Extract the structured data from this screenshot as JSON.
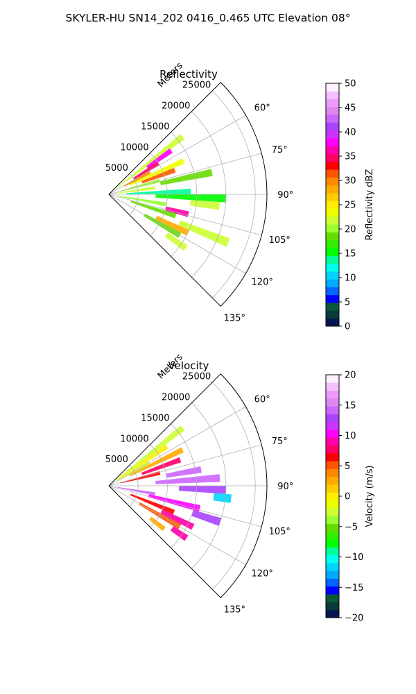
{
  "figure": {
    "suptitle": "SKYLER-HU  SN14_202  0416_0.465 UTC Elevation 08°"
  },
  "chart_data": [
    {
      "type": "heatmap",
      "projection": "polar-sector",
      "title": "Reflectivity",
      "radial_label": "Meters",
      "radial_ticks": [
        5000,
        10000,
        15000,
        20000,
        25000
      ],
      "radial_tick_labels": [
        "5000",
        "10000",
        "15000",
        "20000",
        "25000"
      ],
      "rmax": 27000,
      "azimuth_range_deg": [
        45,
        135
      ],
      "azimuth_ticks_deg": [
        60,
        75,
        90,
        105,
        120,
        135
      ],
      "azimuth_tick_labels": [
        "60°",
        "75°",
        "90°",
        "105°",
        "120°",
        "135°"
      ],
      "grid": true,
      "colorbar": {
        "label": "Reflectivity dBZ",
        "min": 0,
        "max": 50,
        "ticks": [
          0,
          5,
          10,
          15,
          20,
          25,
          30,
          35,
          40,
          45,
          50
        ],
        "tick_labels": [
          "0",
          "5",
          "10",
          "15",
          "20",
          "25",
          "30",
          "35",
          "40",
          "45",
          "50"
        ],
        "colors": [
          "#061650",
          "#0a3a3a",
          "#0a5a3a",
          "#0000ff",
          "#0066ff",
          "#00aaff",
          "#00d5ff",
          "#00ffee",
          "#00ff99",
          "#00ff00",
          "#33ee00",
          "#66dd00",
          "#99ff33",
          "#ccff33",
          "#eeff00",
          "#ffee00",
          "#ffcc00",
          "#ffaa00",
          "#ff8800",
          "#ff5500",
          "#ff0000",
          "#ff0066",
          "#ff00aa",
          "#ff00ff",
          "#cc33ff",
          "#aa44ff",
          "#cc66ff",
          "#dd88ee",
          "#ee99ff",
          "#f5c0ff",
          "#fff0ff"
        ],
        "placement": "right"
      },
      "cells": [
        {
          "az_deg": 52,
          "r0_m": 1500,
          "r1_m": 16000,
          "value": 22
        },
        {
          "az_deg": 55,
          "r0_m": 8000,
          "r1_m": 13000,
          "value": 38
        },
        {
          "az_deg": 58,
          "r0_m": 5000,
          "r1_m": 10000,
          "value": 34
        },
        {
          "az_deg": 62,
          "r0_m": 3000,
          "r1_m": 8000,
          "value": 30
        },
        {
          "az_deg": 66,
          "r0_m": 4000,
          "r1_m": 14000,
          "value": 24
        },
        {
          "az_deg": 70,
          "r0_m": 6000,
          "r1_m": 12000,
          "value": 31
        },
        {
          "az_deg": 75,
          "r0_m": 2000,
          "r1_m": 9000,
          "value": 20
        },
        {
          "az_deg": 78,
          "r0_m": 9000,
          "r1_m": 18000,
          "value": 18
        },
        {
          "az_deg": 82,
          "r0_m": 1000,
          "r1_m": 8000,
          "value": 22
        },
        {
          "az_deg": 88,
          "r0_m": 3000,
          "r1_m": 14000,
          "value": 13
        },
        {
          "az_deg": 92,
          "r0_m": 8000,
          "r1_m": 20000,
          "value": 16
        },
        {
          "az_deg": 96,
          "r0_m": 14000,
          "r1_m": 19000,
          "value": 21
        },
        {
          "az_deg": 100,
          "r0_m": 1500,
          "r1_m": 10000,
          "value": 20
        },
        {
          "az_deg": 104,
          "r0_m": 10000,
          "r1_m": 14000,
          "value": 36
        },
        {
          "az_deg": 108,
          "r0_m": 4000,
          "r1_m": 12000,
          "value": 19
        },
        {
          "az_deg": 112,
          "r0_m": 13000,
          "r1_m": 22000,
          "value": 21
        },
        {
          "az_deg": 116,
          "r0_m": 9000,
          "r1_m": 15000,
          "value": 28
        },
        {
          "az_deg": 120,
          "r0_m": 7000,
          "r1_m": 14000,
          "value": 18
        },
        {
          "az_deg": 125,
          "r0_m": 12000,
          "r1_m": 16000,
          "value": 22
        }
      ]
    },
    {
      "type": "heatmap",
      "projection": "polar-sector",
      "title": "Velocity",
      "radial_label": "Meters",
      "radial_ticks": [
        5000,
        10000,
        15000,
        20000,
        25000
      ],
      "radial_tick_labels": [
        "5000",
        "10000",
        "15000",
        "20000",
        "25000"
      ],
      "rmax": 27000,
      "azimuth_range_deg": [
        45,
        135
      ],
      "azimuth_ticks_deg": [
        60,
        75,
        90,
        105,
        120,
        135
      ],
      "azimuth_tick_labels": [
        "60°",
        "75°",
        "90°",
        "105°",
        "120°",
        "135°"
      ],
      "grid": true,
      "colorbar": {
        "label": "Velocity (m/s)",
        "min": -20,
        "max": 20,
        "ticks": [
          -20,
          -15,
          -10,
          -5,
          0,
          5,
          10,
          15,
          20
        ],
        "tick_labels": [
          "−20",
          "−15",
          "−10",
          "−5",
          "0",
          "5",
          "10",
          "15",
          "20"
        ],
        "colors": [
          "#061650",
          "#0a3a3a",
          "#0a5a3a",
          "#0000ff",
          "#0066ff",
          "#00aaff",
          "#00d5ff",
          "#00ffee",
          "#00ff99",
          "#00ff00",
          "#33ee00",
          "#66dd00",
          "#99ff33",
          "#ccff33",
          "#eeff00",
          "#ffee00",
          "#ffcc00",
          "#ffaa00",
          "#ff8800",
          "#ff5500",
          "#ff0000",
          "#ff0066",
          "#ff00aa",
          "#ff00ff",
          "#cc33ff",
          "#aa44ff",
          "#cc66ff",
          "#dd88ee",
          "#ee99ff",
          "#f5c0ff",
          "#fff0ff"
        ],
        "placement": "right"
      },
      "cells": [
        {
          "az_deg": 52,
          "r0_m": 1500,
          "r1_m": 16000,
          "value": -3
        },
        {
          "az_deg": 56,
          "r0_m": 2000,
          "r1_m": 12000,
          "value": 0
        },
        {
          "az_deg": 60,
          "r0_m": 1000,
          "r1_m": 8000,
          "value": -2
        },
        {
          "az_deg": 64,
          "r0_m": 4000,
          "r1_m": 14000,
          "value": 3
        },
        {
          "az_deg": 70,
          "r0_m": 6000,
          "r1_m": 13000,
          "value": 8
        },
        {
          "az_deg": 76,
          "r0_m": 2000,
          "r1_m": 9000,
          "value": 6
        },
        {
          "az_deg": 80,
          "r0_m": 10000,
          "r1_m": 16000,
          "value": 14
        },
        {
          "az_deg": 86,
          "r0_m": 8000,
          "r1_m": 19000,
          "value": 14
        },
        {
          "az_deg": 92,
          "r0_m": 12000,
          "r1_m": 20000,
          "value": 13
        },
        {
          "az_deg": 96,
          "r0_m": 18000,
          "r1_m": 21000,
          "value": -11
        },
        {
          "az_deg": 100,
          "r0_m": 1500,
          "r1_m": 8000,
          "value": 14
        },
        {
          "az_deg": 104,
          "r0_m": 7000,
          "r1_m": 16000,
          "value": 10
        },
        {
          "az_deg": 108,
          "r0_m": 15000,
          "r1_m": 20000,
          "value": 13
        },
        {
          "az_deg": 112,
          "r0_m": 4000,
          "r1_m": 12000,
          "value": 6
        },
        {
          "az_deg": 116,
          "r0_m": 10000,
          "r1_m": 16000,
          "value": 9
        },
        {
          "az_deg": 120,
          "r0_m": 6000,
          "r1_m": 14000,
          "value": 5
        },
        {
          "az_deg": 124,
          "r0_m": 13000,
          "r1_m": 16000,
          "value": 9
        },
        {
          "az_deg": 128,
          "r0_m": 9000,
          "r1_m": 12000,
          "value": 2
        }
      ]
    }
  ]
}
